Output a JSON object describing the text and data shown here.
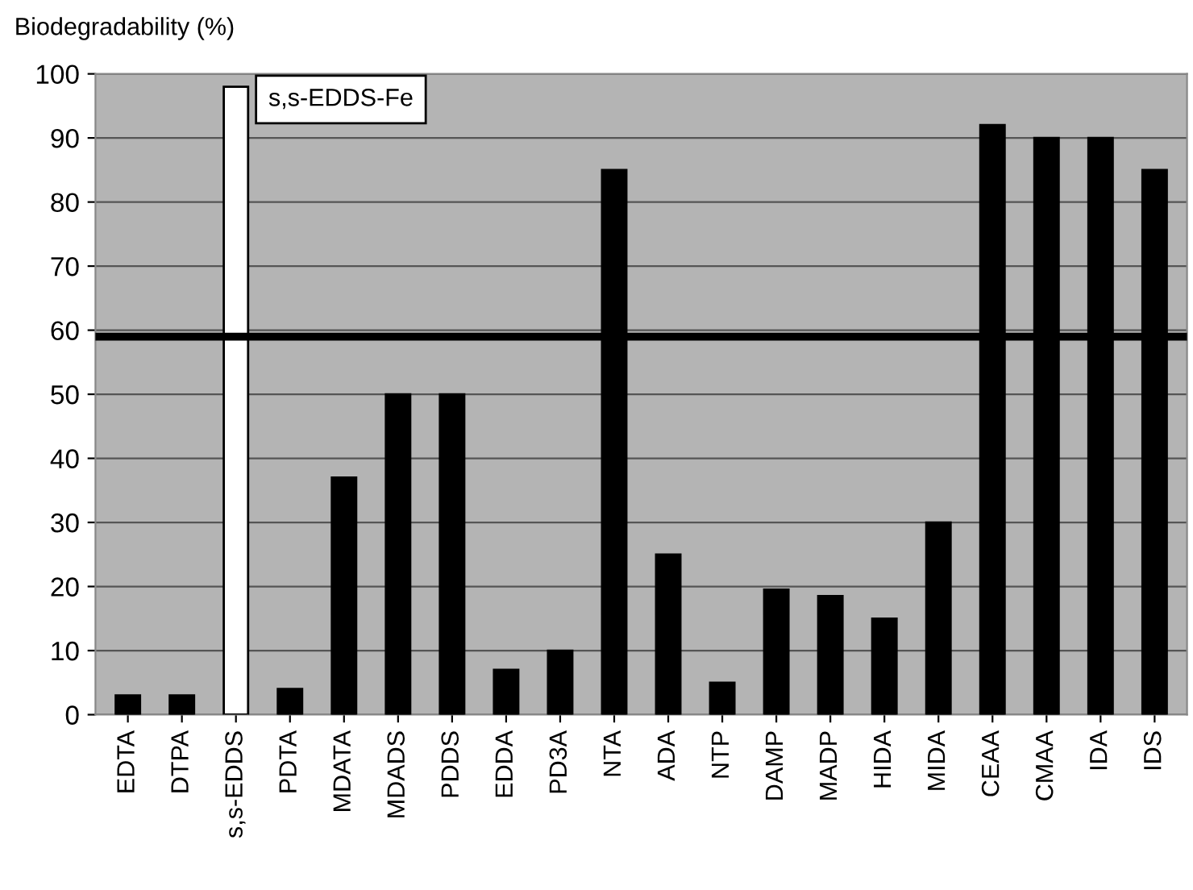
{
  "chart_data": {
    "type": "bar",
    "ylabel": "Biodegradability (%)",
    "categories": [
      "EDTA",
      "DTPA",
      "s,s-EDDS",
      "PDTA",
      "MDATA",
      "MDADS",
      "PDDS",
      "EDDA",
      "PD3A",
      "NTA",
      "ADA",
      "NTP",
      "DAMP",
      "MADP",
      "HIDA",
      "MIDA",
      "CEAA",
      "CMAA",
      "IDA",
      "IDS"
    ],
    "values": [
      3,
      3,
      98,
      4,
      37,
      50,
      50,
      7,
      10,
      85,
      25,
      5,
      19.5,
      18.5,
      15,
      30,
      92,
      90,
      90,
      85
    ],
    "colors": [
      "#000000",
      "#000000",
      "#ffffff",
      "#000000",
      "#000000",
      "#000000",
      "#000000",
      "#000000",
      "#000000",
      "#000000",
      "#000000",
      "#000000",
      "#000000",
      "#000000",
      "#000000",
      "#000000",
      "#000000",
      "#000000",
      "#000000",
      "#000000"
    ],
    "ylim": [
      0,
      100
    ],
    "yticks": [
      0,
      10,
      20,
      30,
      40,
      50,
      60,
      70,
      80,
      90,
      100
    ],
    "grid": "y",
    "ref_lines": [
      {
        "axis": "y",
        "value": 59,
        "color": "#000000"
      }
    ],
    "annotations": [
      "s,s-EDDS-Fe"
    ]
  }
}
